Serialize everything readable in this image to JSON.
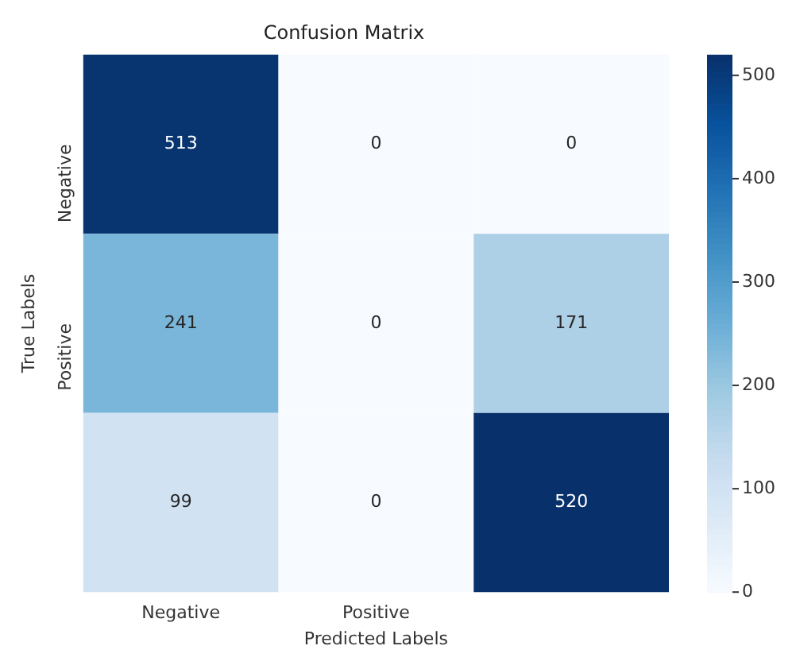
{
  "chart_data": {
    "type": "heatmap",
    "title": "Confusion Matrix",
    "xlabel": "Predicted Labels",
    "ylabel": "True Labels",
    "categories": [
      "Negative",
      "Positive",
      null
    ],
    "y_categories": [
      "Negative",
      "Positive",
      null
    ],
    "cells": [
      [
        513,
        0,
        0
      ],
      [
        241,
        0,
        171
      ],
      [
        99,
        0,
        520
      ]
    ],
    "data_labels": true,
    "clim": [
      0,
      520
    ],
    "cticks": [
      0,
      100,
      200,
      300,
      400,
      500
    ]
  }
}
